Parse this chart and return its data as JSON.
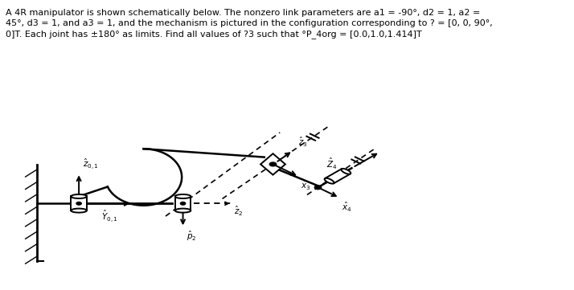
{
  "title_text": "A 4R manipulator is shown schematically below. The nonzero link parameters are a1 = -90°, d2 = 1, a2 =\n45°, d3 = 1, and a3 = 1, and the mechanism is pictured in the configuration corresponding to ? = [0, 0, 90°,\n0]T. Each joint has ±180° as limits. Find all values of ?3 such that °P_4org = [0.0,1.0,1.414]T",
  "bg_color": "#ffffff",
  "figsize": [
    7.14,
    3.61
  ],
  "dpi": 100,
  "xlim": [
    0,
    10
  ],
  "ylim": [
    0,
    5.5
  ]
}
